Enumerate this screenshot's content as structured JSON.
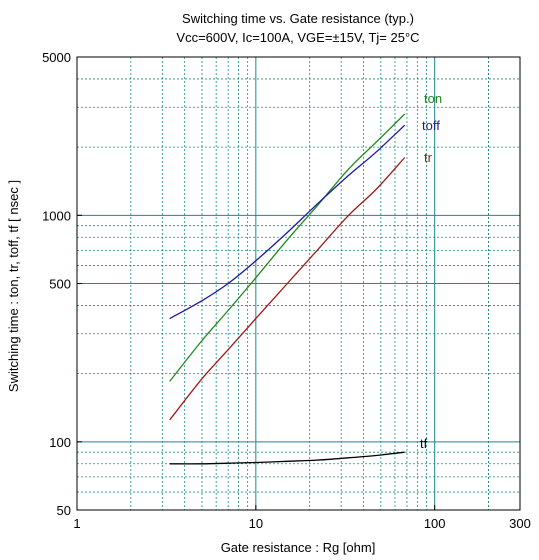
{
  "chart_data": {
    "type": "line",
    "title": "Switching time  vs.  Gate resistance  (typ.)",
    "subtitle": "Vcc=600V, Ic=100A, VGE=±15V, Tj= 25°C",
    "xlabel": "Gate resistance  :  Rg  [ohm]",
    "ylabel": "Switching time  :  ton, tr, toff, tf  [ nsec ]",
    "xscale": "log",
    "yscale": "log",
    "xlim": [
      1,
      300
    ],
    "ylim": [
      50,
      5000
    ],
    "x_ticks": [
      {
        "value": 1,
        "label": "1"
      },
      {
        "value": 10,
        "label": "10"
      },
      {
        "value": 100,
        "label": "100"
      },
      {
        "value": 300,
        "label": "300"
      }
    ],
    "y_ticks": [
      {
        "value": 50,
        "label": "50"
      },
      {
        "value": 100,
        "label": "100"
      },
      {
        "value": 500,
        "label": "500"
      },
      {
        "value": 1000,
        "label": "1000"
      },
      {
        "value": 5000,
        "label": "5000"
      }
    ],
    "grid": true,
    "series": [
      {
        "name": "ton",
        "color": "#1f8a1f",
        "x": [
          3.3,
          5,
          7,
          10,
          15,
          22,
          33,
          47,
          68
        ],
        "y": [
          185,
          280,
          380,
          530,
          780,
          1100,
          1600,
          2100,
          2800
        ]
      },
      {
        "name": "toff",
        "color": "#1a1aa0",
        "x": [
          3.3,
          5,
          7,
          10,
          15,
          22,
          33,
          47,
          68
        ],
        "y": [
          350,
          420,
          500,
          630,
          840,
          1120,
          1500,
          1900,
          2500
        ]
      },
      {
        "name": "tr",
        "color": "#a01818",
        "x": [
          3.3,
          5,
          7,
          10,
          15,
          22,
          33,
          47,
          68
        ],
        "y": [
          125,
          190,
          255,
          350,
          500,
          700,
          1000,
          1300,
          1800
        ]
      },
      {
        "name": "tf",
        "color": "#000000",
        "x": [
          3.3,
          5,
          7,
          10,
          15,
          22,
          33,
          47,
          68
        ],
        "y": [
          80,
          80,
          80.5,
          81,
          82,
          83,
          85,
          87,
          90
        ]
      }
    ]
  }
}
